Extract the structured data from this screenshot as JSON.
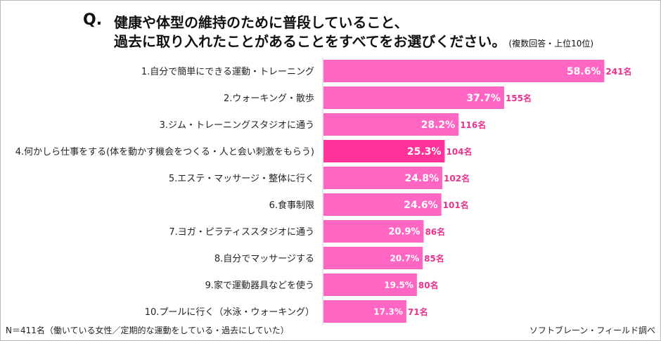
{
  "question": {
    "mark": "Q.",
    "line1": "健康や体型の維持のために普段していること、",
    "line2": "過去に取り入れたことがあることをすべてをお選びください。",
    "note": "(複数回答・上位10位)"
  },
  "footer": {
    "sample": "N＝411名（働いている女性／定期的な運動をしている・過去にしていた）",
    "source": "ソフトブレーン・フィールド調べ"
  },
  "colors": {
    "bar": "#ff66c4",
    "highlight": "#ff3399",
    "count_text": "#e8328c"
  },
  "chart_data": {
    "type": "bar",
    "orientation": "horizontal",
    "categories": [
      "1.自分で簡単にできる運動・トレーニング",
      "2.ウォーキング・散歩",
      "3.ジム・トレーニングスタジオに通う",
      "4.何かしら仕事をする(体を動かす機会をつくる・人と会い刺激をもらう)",
      "5.エステ・マッサージ・整体に行く",
      "6.食事制限",
      "7.ヨガ・ピラティススタジオに通う",
      "8.自分でマッサージする",
      "9.家で運動器具などを使う",
      "10.プールに行く（水泳・ウォーキング）"
    ],
    "values": [
      58.6,
      37.7,
      28.2,
      25.3,
      24.8,
      24.6,
      20.9,
      20.7,
      19.5,
      17.3
    ],
    "value_labels": [
      "58.6%",
      "37.7%",
      "28.2%",
      "25.3%",
      "24.8%",
      "24.6%",
      "20.9%",
      "20.7%",
      "19.5%",
      "17.3%"
    ],
    "counts": [
      "241名",
      "155名",
      "116名",
      "104名",
      "102名",
      "101名",
      "86名",
      "85名",
      "80名",
      "71名"
    ],
    "highlight_index": 3,
    "xlim": [
      0,
      100
    ]
  }
}
